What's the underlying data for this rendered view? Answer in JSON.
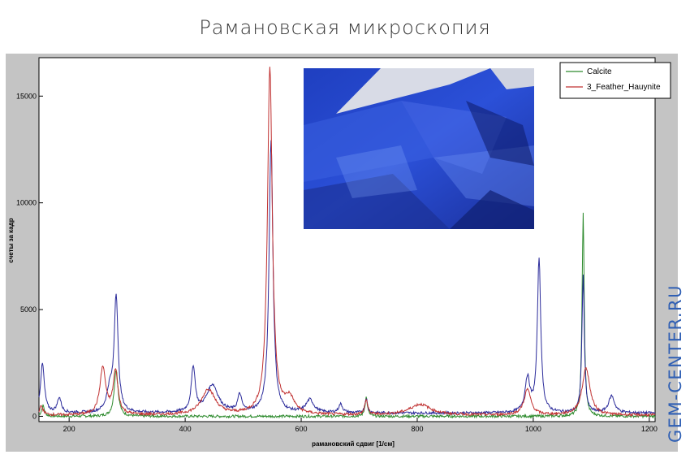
{
  "title": "Рамановская микроскопия",
  "watermark": "GEM-CENTER.RU",
  "colors": {
    "frame": "#c4c4c4",
    "calcite": "#2e8b2e",
    "hauynite": "#c03030",
    "third": "#2a2a9a",
    "watermark": "#2f5fb4"
  },
  "chart_data": {
    "type": "line",
    "xlabel": "рамановский сдвиг [1/см]",
    "ylabel": "счеты за кадр",
    "xlim": [
      148,
      1210
    ],
    "ylim": [
      -250,
      16800
    ],
    "xticks": [
      200,
      400,
      600,
      800,
      1000,
      1200
    ],
    "yticks": [
      0,
      5000,
      10000,
      15000
    ],
    "xtick_labels": [
      "200",
      "400",
      "600",
      "800",
      "1000",
      "1200"
    ],
    "ytick_labels": [
      "0",
      "5000",
      "10000",
      "15000"
    ],
    "legend": {
      "position": "top-right",
      "entries": [
        "Calcite",
        "3_Feather_Hauynite"
      ]
    },
    "inset_image": "photo of blue hauynite crystal",
    "series": [
      {
        "name": "Calcite",
        "color": "#2e8b2e",
        "baseline": 0,
        "peaks": [
          {
            "x": 155,
            "h": 500,
            "w": 3
          },
          {
            "x": 281,
            "h": 2200,
            "w": 4
          },
          {
            "x": 712,
            "h": 900,
            "w": 2.5
          },
          {
            "x": 1086,
            "h": 9500,
            "w": 2.2
          }
        ]
      },
      {
        "name": "3_Feather_Hauynite",
        "color": "#c03030",
        "baseline": 50,
        "peaks": [
          {
            "x": 152,
            "h": 400,
            "w": 4
          },
          {
            "x": 258,
            "h": 2200,
            "w": 6
          },
          {
            "x": 280,
            "h": 2000,
            "w": 5
          },
          {
            "x": 440,
            "h": 1200,
            "w": 14
          },
          {
            "x": 546,
            "h": 16300,
            "w": 5
          },
          {
            "x": 580,
            "h": 700,
            "w": 10
          },
          {
            "x": 712,
            "h": 700,
            "w": 3
          },
          {
            "x": 805,
            "h": 500,
            "w": 22
          },
          {
            "x": 990,
            "h": 1200,
            "w": 7
          },
          {
            "x": 1091,
            "h": 2200,
            "w": 8
          }
        ]
      },
      {
        "name": "",
        "color": "#2a2a9a",
        "baseline": 150,
        "peaks": [
          {
            "x": 154,
            "h": 2300,
            "w": 4
          },
          {
            "x": 183,
            "h": 700,
            "w": 4
          },
          {
            "x": 270,
            "h": 1000,
            "w": 6
          },
          {
            "x": 281,
            "h": 5400,
            "w": 4
          },
          {
            "x": 414,
            "h": 2100,
            "w": 4
          },
          {
            "x": 447,
            "h": 1300,
            "w": 12
          },
          {
            "x": 494,
            "h": 800,
            "w": 4
          },
          {
            "x": 548,
            "h": 12800,
            "w": 4
          },
          {
            "x": 615,
            "h": 600,
            "w": 8
          },
          {
            "x": 668,
            "h": 400,
            "w": 4
          },
          {
            "x": 712,
            "h": 700,
            "w": 2.5
          },
          {
            "x": 990,
            "h": 1600,
            "w": 5
          },
          {
            "x": 1010,
            "h": 7200,
            "w": 3.5
          },
          {
            "x": 1086,
            "h": 6400,
            "w": 2.5
          },
          {
            "x": 1135,
            "h": 800,
            "w": 6
          }
        ]
      }
    ]
  }
}
